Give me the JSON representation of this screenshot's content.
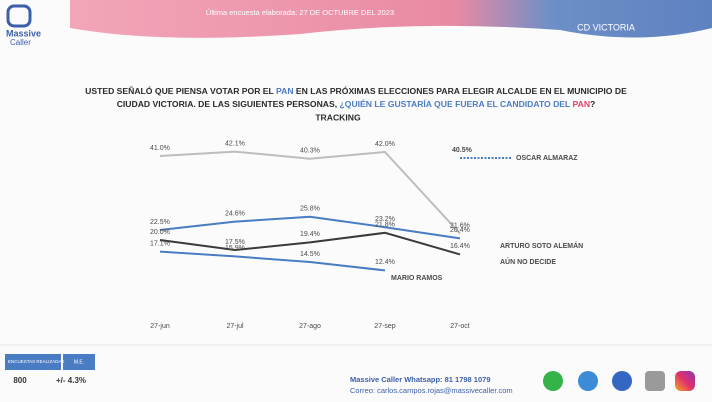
{
  "header": {
    "brand_line1": "Massive",
    "brand_line2": "Caller",
    "date": "Última encuesta elaborada: 27 DE OCTUBRE DEL 2023",
    "city": "CD VICTORIA"
  },
  "chart_data": {
    "type": "line",
    "title_line1": [
      "USTED SEÑALÓ QUE PIENSA VOTAR POR EL ",
      "PAN",
      " EN LAS PRÓXIMAS ELECCIONES PARA ELEGIR ALCALDE EN EL MUNICIPIO DE"
    ],
    "title_line2": [
      "CIUDAD VICTORIA. DE LAS SIGUIENTES PERSONAS, ",
      "¿QUIÉN LE GUSTARÍA QUE FUERA EL CANDIDATO DEL ",
      "PAN",
      "?"
    ],
    "subtitle": "TRACKING",
    "categories": [
      "27-jun",
      "27-jul",
      "27-ago",
      "27-sep",
      "27-oct"
    ],
    "ylim": [
      0,
      45
    ],
    "series": [
      {
        "color": "#bdbdbd",
        "values": [
          41.0,
          42.1,
          40.3,
          42.0,
          21.6
        ],
        "value_labels": [
          "41.0%",
          "42.1%",
          "40.3%",
          "42.0%",
          "21.6%"
        ]
      },
      {
        "name": "OSCAR ALMARAZ",
        "color": "#4a7cc4",
        "dotted": true,
        "values": [
          null,
          null,
          null,
          null,
          40.5
        ],
        "value_labels": [
          null,
          null,
          null,
          null,
          "40.5%"
        ]
      },
      {
        "name": "ARTURO SOTO ALEMÁN",
        "color": "#4a7cc4",
        "values": [
          22.5,
          24.6,
          25.8,
          23.2,
          20.4
        ],
        "value_labels": [
          "22.5%",
          "24.6%",
          "25.8%",
          "23.2%",
          "20.4%"
        ]
      },
      {
        "name": "AÚN NO DECIDE",
        "color": "#3a3a3a",
        "values": [
          20.0,
          17.5,
          19.4,
          21.8,
          16.4
        ],
        "value_labels": [
          "20.0%",
          "17.5%",
          "19.4%",
          "21.8%",
          "16.4%"
        ]
      },
      {
        "name": "MARIO RAMOS",
        "color": "#4a7cc4",
        "values": [
          17.1,
          15.9,
          14.5,
          12.4,
          null
        ],
        "value_labels": [
          "17.1%",
          "15.9%",
          "14.5%",
          "12.4%",
          null
        ]
      }
    ]
  },
  "footer": {
    "surveys_label": "ENCUESTAS REALIZADAS",
    "surveys": "800",
    "me_label": "M.E.",
    "me": "+/- 4.3%",
    "whatsapp": "Massive Caller Whatsapp: 81 1798 1079",
    "email": "Correo: carlos.campos.rojas@massivecaller.com"
  }
}
